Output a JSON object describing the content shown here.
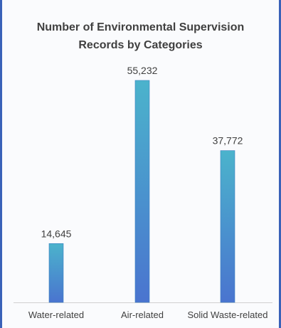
{
  "chart_data": {
    "type": "bar",
    "title_lines": [
      "Number of Environmental Supervision",
      "Records by Categories"
    ],
    "categories": [
      "Water-related",
      "Air-related",
      "Solid Waste-related"
    ],
    "values": [
      14645,
      55232,
      37772
    ],
    "value_labels": [
      "14,645",
      "55,232",
      "37,772"
    ],
    "xlabel": "",
    "ylabel": "",
    "ylim": [
      0,
      55232
    ],
    "grid": false,
    "legend": "none",
    "colors": {
      "bar_top": "#4bb3cc",
      "bar_bottom": "#4a74cf",
      "bar_edge": "#3d7fc1",
      "axis": "#d0d0d0"
    }
  }
}
